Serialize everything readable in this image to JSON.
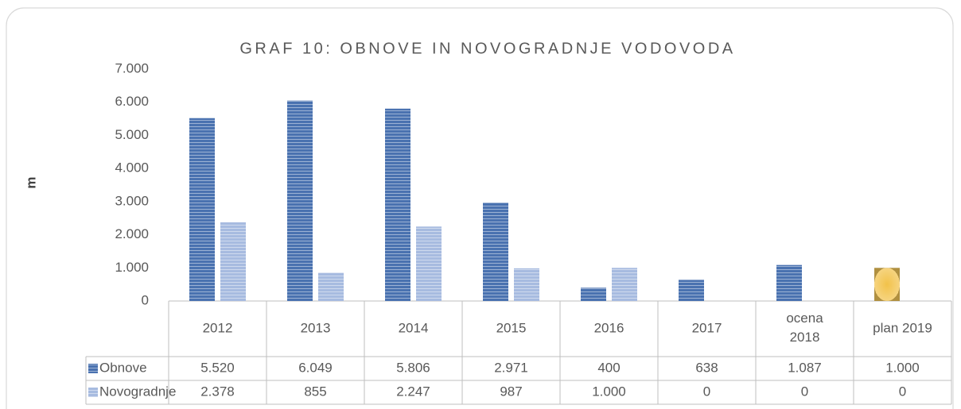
{
  "chart_data": {
    "type": "bar",
    "title": "GRAF 10: OBNOVE IN NOVOGRADNJE VODOVODA",
    "y_label": "m",
    "categories": [
      "2012",
      "2013",
      "2014",
      "2015",
      "2016",
      "2017",
      "ocena 2018",
      "plan 2019"
    ],
    "series": [
      {
        "name": "Obnove",
        "color": "#4a72b0",
        "values": [
          5520,
          6049,
          5806,
          2971,
          400,
          638,
          1087,
          1000
        ],
        "value_labels": [
          "5.520",
          "6.049",
          "5.806",
          "2.971",
          "400",
          "638",
          "1.087",
          "1.000"
        ]
      },
      {
        "name": "Novogradnje",
        "color": "#a7bbe0",
        "values": [
          2378,
          855,
          2247,
          987,
          1000,
          0,
          0,
          0
        ],
        "value_labels": [
          "2.378",
          "855",
          "2.247",
          "987",
          "1.000",
          "0",
          "0",
          "0"
        ]
      }
    ],
    "special_point": {
      "series": 0,
      "index": 7,
      "color": "#f2c24a"
    },
    "ylim": [
      0,
      7000
    ],
    "yticks": [
      0,
      {
        "value": 1000,
        "label": "1.000"
      },
      {
        "value": 2000,
        "label": "2.000"
      },
      {
        "value": 3000,
        "label": "3.000"
      },
      {
        "value": 4000,
        "label": "4.000"
      },
      {
        "value": 5000,
        "label": "5.000"
      },
      {
        "value": 6000,
        "label": "6.000"
      },
      {
        "value": 7000,
        "label": "7.000"
      }
    ],
    "data_table": true
  }
}
